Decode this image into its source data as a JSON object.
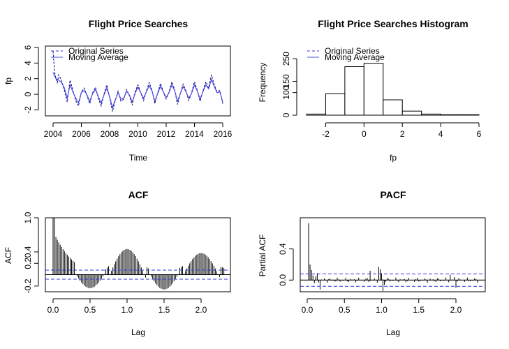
{
  "colors": {
    "series": "#000080",
    "ma": "#4b4be0",
    "ci": "#3333dd",
    "axis": "#000000"
  },
  "chart_data": [
    {
      "type": "line",
      "title": "Flight Price Searches",
      "xlabel": "Time",
      "ylabel": "fp",
      "xlim": [
        2004,
        2016
      ],
      "ylim": [
        -2.5,
        6
      ],
      "xticks": [
        2004,
        2006,
        2008,
        2010,
        2012,
        2014,
        2016
      ],
      "yticks": [
        -2,
        0,
        2,
        4,
        6
      ],
      "legend_position": "top-left",
      "legend": [
        "Original Series",
        "Moving Average"
      ],
      "series": [
        {
          "name": "Original Series",
          "style": "dashed",
          "x": [
            2004.0,
            2004.1,
            2004.2,
            2004.3,
            2004.4,
            2004.6,
            2004.8,
            2005.0,
            2005.2,
            2005.4,
            2005.6,
            2005.8,
            2006.0,
            2006.2,
            2006.4,
            2006.6,
            2006.8,
            2007.0,
            2007.2,
            2007.4,
            2007.6,
            2007.8,
            2008.0,
            2008.2,
            2008.4,
            2008.6,
            2008.8,
            2009.0,
            2009.2,
            2009.4,
            2009.6,
            2009.8,
            2010.0,
            2010.2,
            2010.4,
            2010.6,
            2010.8,
            2011.0,
            2011.2,
            2011.4,
            2011.6,
            2011.8,
            2012.0,
            2012.2,
            2012.4,
            2012.6,
            2012.8,
            2013.0,
            2013.2,
            2013.4,
            2013.6,
            2013.8,
            2014.0,
            2014.2,
            2014.4,
            2014.6,
            2014.8,
            2015.0,
            2015.2,
            2015.4,
            2015.6,
            2015.8,
            2016.0
          ],
          "y": [
            5.5,
            3.0,
            2.0,
            1.5,
            2.5,
            1.8,
            0.5,
            -1.0,
            1.8,
            0.5,
            -0.8,
            -1.5,
            0.3,
            0.8,
            -0.2,
            -1.2,
            0.2,
            0.9,
            -0.5,
            -1.5,
            0.0,
            1.2,
            -0.4,
            -2.2,
            -0.8,
            0.4,
            -0.9,
            -0.6,
            0.6,
            -0.2,
            -1.4,
            0.3,
            1.2,
            0.2,
            -0.8,
            0.4,
            1.5,
            0.5,
            -1.2,
            0.2,
            1.4,
            0.3,
            -0.6,
            0.3,
            1.6,
            0.6,
            -1.3,
            0.1,
            1.3,
            0.4,
            -0.8,
            0.2,
            1.6,
            0.5,
            -0.9,
            0.4,
            1.6,
            0.8,
            2.5,
            1.2,
            0.3,
            0.5,
            -1.2
          ]
        },
        {
          "name": "Moving Average",
          "style": "solid",
          "x": [
            2004.0,
            2004.2,
            2004.4,
            2004.6,
            2004.8,
            2005.0,
            2005.2,
            2005.4,
            2005.6,
            2005.8,
            2006.0,
            2006.2,
            2006.4,
            2006.6,
            2006.8,
            2007.0,
            2007.2,
            2007.4,
            2007.6,
            2007.8,
            2008.0,
            2008.2,
            2008.4,
            2008.6,
            2008.8,
            2009.0,
            2009.2,
            2009.4,
            2009.6,
            2009.8,
            2010.0,
            2010.2,
            2010.4,
            2010.6,
            2010.8,
            2011.0,
            2011.2,
            2011.4,
            2011.6,
            2011.8,
            2012.0,
            2012.2,
            2012.4,
            2012.6,
            2012.8,
            2013.0,
            2013.2,
            2013.4,
            2013.6,
            2013.8,
            2014.0,
            2014.2,
            2014.4,
            2014.6,
            2014.8,
            2015.0,
            2015.2,
            2015.4,
            2015.6,
            2015.8,
            2016.0
          ],
          "y": [
            2.8,
            2.0,
            1.8,
            1.5,
            0.8,
            -0.5,
            1.2,
            0.3,
            -0.5,
            -1.1,
            0.2,
            0.5,
            -0.1,
            -0.9,
            0.1,
            0.6,
            -0.3,
            -1.1,
            -0.1,
            0.8,
            -0.3,
            -1.7,
            -0.7,
            0.2,
            -0.6,
            -0.5,
            0.4,
            -0.1,
            -1.0,
            0.1,
            0.9,
            0.2,
            -0.5,
            0.3,
            1.1,
            0.4,
            -0.9,
            0.1,
            1.0,
            0.3,
            -0.4,
            0.2,
            1.2,
            0.5,
            -0.9,
            0.1,
            1.0,
            0.3,
            -0.5,
            0.1,
            1.2,
            0.4,
            -0.6,
            0.3,
            1.2,
            0.7,
            1.9,
            1.0,
            0.2,
            0.3,
            -1.0
          ]
        }
      ]
    },
    {
      "type": "bar",
      "title": "Flight Price Searches Histogram",
      "xlabel": "fp",
      "ylabel": "Frequency",
      "xlim": [
        -3,
        6
      ],
      "ylim": [
        0,
        300
      ],
      "xticks": [
        -2,
        0,
        2,
        4,
        6
      ],
      "yticks": [
        0,
        100,
        150,
        250
      ],
      "legend_position": "top-left",
      "legend": [
        "Original Series",
        "Moving Average"
      ],
      "bins": [
        [
          -3,
          -2
        ],
        [
          -2,
          -1
        ],
        [
          -1,
          0
        ],
        [
          0,
          1
        ],
        [
          1,
          2
        ],
        [
          2,
          3
        ],
        [
          3,
          4
        ],
        [
          4,
          5
        ],
        [
          5,
          6
        ]
      ],
      "values": [
        5,
        95,
        215,
        230,
        68,
        18,
        5,
        2,
        2
      ]
    },
    {
      "type": "bar",
      "title": "ACF",
      "xlabel": "Lag",
      "ylabel": "ACF",
      "xlim": [
        -0.05,
        2.35
      ],
      "ylim": [
        -0.3,
        1.0
      ],
      "xticks": [
        0.0,
        0.5,
        1.0,
        1.5,
        2.0
      ],
      "yticks": [
        -0.2,
        0.2,
        0.4,
        1.0
      ],
      "ci": [
        0.08,
        -0.08
      ],
      "lag_step": 0.01923,
      "waveform": "seasonal decay: 1.0 at lag 0, trough -0.27 near 0.5 and 1.5, peaks 0.50 at 1.0 and 0.42 at 2.0"
    },
    {
      "type": "bar",
      "title": "PACF",
      "xlabel": "Lag",
      "ylabel": "Partial ACF",
      "xlim": [
        -0.05,
        2.35
      ],
      "ylim": [
        -0.15,
        0.8
      ],
      "xticks": [
        0.0,
        0.5,
        1.0,
        1.5,
        2.0
      ],
      "yticks": [
        0.0,
        0.4
      ],
      "ci": [
        0.08,
        -0.08
      ],
      "spikes": [
        {
          "lag": 0.019,
          "value": 0.73
        },
        {
          "lag": 0.038,
          "value": 0.2
        },
        {
          "lag": 0.058,
          "value": 0.13
        },
        {
          "lag": 0.077,
          "value": 0.06
        },
        {
          "lag": 0.096,
          "value": -0.04
        },
        {
          "lag": 0.115,
          "value": 0.05
        },
        {
          "lag": 0.135,
          "value": 0.09
        },
        {
          "lag": 0.154,
          "value": -0.03
        },
        {
          "lag": 0.173,
          "value": -0.12
        },
        {
          "lag": 0.846,
          "value": 0.12
        },
        {
          "lag": 0.962,
          "value": 0.17
        },
        {
          "lag": 0.981,
          "value": 0.14
        },
        {
          "lag": 1.0,
          "value": 0.09
        },
        {
          "lag": 1.019,
          "value": -0.14
        },
        {
          "lag": 1.038,
          "value": -0.06
        },
        {
          "lag": 1.923,
          "value": 0.07
        },
        {
          "lag": 1.981,
          "value": 0.04
        },
        {
          "lag": 2.0,
          "value": -0.1
        }
      ]
    }
  ]
}
